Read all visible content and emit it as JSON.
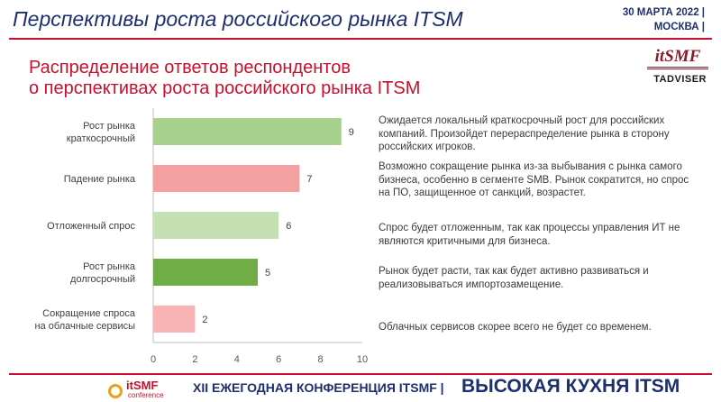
{
  "header": {
    "title": "Перспективы роста российского рынка ITSM",
    "date_line1": "30 МАРТА 2022 |",
    "date_line2": "МОСКВА |"
  },
  "subtitle": {
    "line1": "Распределение ответов респондентов",
    "line2": "о перспективах роста российского рынка ITSM"
  },
  "logos": {
    "itsmf": "itSMF",
    "tadviser": "TADVISER"
  },
  "chart_data": {
    "type": "bar",
    "orientation": "horizontal",
    "categories": [
      [
        "Рост рынка",
        "краткосрочный"
      ],
      [
        "Падение рынка"
      ],
      [
        "Отложенный спрос"
      ],
      [
        "Рост рынка",
        "долгосрочный"
      ],
      [
        "Сокращение спроса",
        "на облачные сервисы"
      ]
    ],
    "values": [
      9,
      7,
      6,
      5,
      2
    ],
    "colors": [
      "#a8d08d",
      "#f4a0a0",
      "#c5e0b3",
      "#70ad47",
      "#f8b4b4"
    ],
    "xlim": [
      0,
      10
    ],
    "xticks": [
      "0",
      "2",
      "4",
      "6",
      "8",
      "10"
    ],
    "title": "",
    "xlabel": "",
    "ylabel": ""
  },
  "comments": [
    "Ожидается локальный краткосрочный рост для российских компаний. Произойдет перераспределение рынка в сторону российских игроков.",
    "Возможно сокращение рынка из-за выбывания с рынка самого бизнеса, особенно в сегменте SMB. Рынок сократится, но спрос на ПО, защищенное от санкций, возрастет.",
    "Спрос будет отложенным, так как процессы управления ИТ не являются критичными для бизнеса.",
    "Рынок будет расти, так как будет активно развиваться и реализовываться импортозамещение.",
    "Облачных сервисов скорее всего не будет со временем."
  ],
  "footer": {
    "logo": "itSMF",
    "logo_sub": "conference",
    "conference": "XII ЕЖЕГОДНАЯ КОНФЕРЕНЦИЯ ITSMF |",
    "slogan": "ВЫСОКАЯ КУХНЯ ITSM"
  }
}
